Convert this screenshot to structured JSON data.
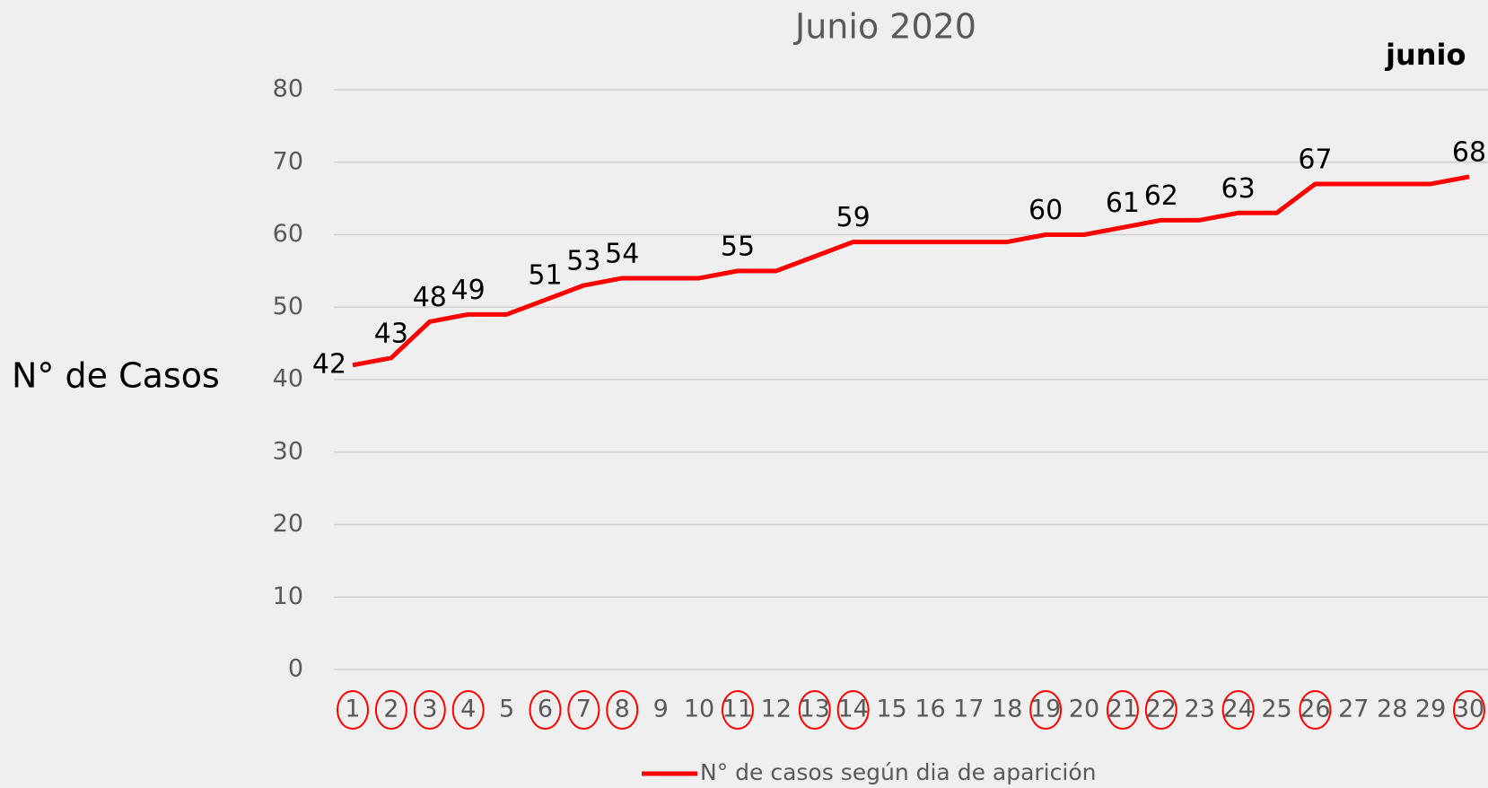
{
  "chart_data": {
    "type": "line",
    "title": "Junio 2020",
    "annotation": "junio",
    "y_label": "N° de Casos",
    "categories": [
      "1",
      "2",
      "3",
      "4",
      "5",
      "6",
      "7",
      "8",
      "9",
      "10",
      "11",
      "12",
      "13",
      "14",
      "15",
      "16",
      "17",
      "18",
      "19",
      "20",
      "21",
      "22",
      "23",
      "24",
      "25",
      "26",
      "27",
      "28",
      "29",
      "30"
    ],
    "series": [
      {
        "name": "N° de casos según dia de aparición",
        "color": "#ff0000",
        "values": [
          42,
          43,
          48,
          49,
          49,
          51,
          53,
          54,
          54,
          54,
          55,
          55,
          57,
          59,
          59,
          59,
          59,
          59,
          60,
          60,
          61,
          62,
          62,
          63,
          63,
          67,
          67,
          67,
          67,
          68
        ]
      }
    ],
    "labeled": [
      true,
      true,
      true,
      true,
      false,
      true,
      true,
      true,
      false,
      false,
      true,
      false,
      false,
      true,
      false,
      false,
      false,
      false,
      true,
      false,
      true,
      true,
      false,
      true,
      false,
      true,
      false,
      false,
      false,
      true
    ],
    "circled": [
      true,
      true,
      true,
      true,
      false,
      true,
      true,
      true,
      false,
      false,
      true,
      false,
      true,
      true,
      false,
      false,
      false,
      false,
      true,
      false,
      true,
      true,
      false,
      true,
      false,
      true,
      false,
      false,
      false,
      true
    ],
    "ylim": [
      0,
      80
    ],
    "yticks": [
      0,
      10,
      20,
      30,
      40,
      50,
      60,
      70,
      80
    ],
    "grid": true,
    "legend": "bottom"
  }
}
